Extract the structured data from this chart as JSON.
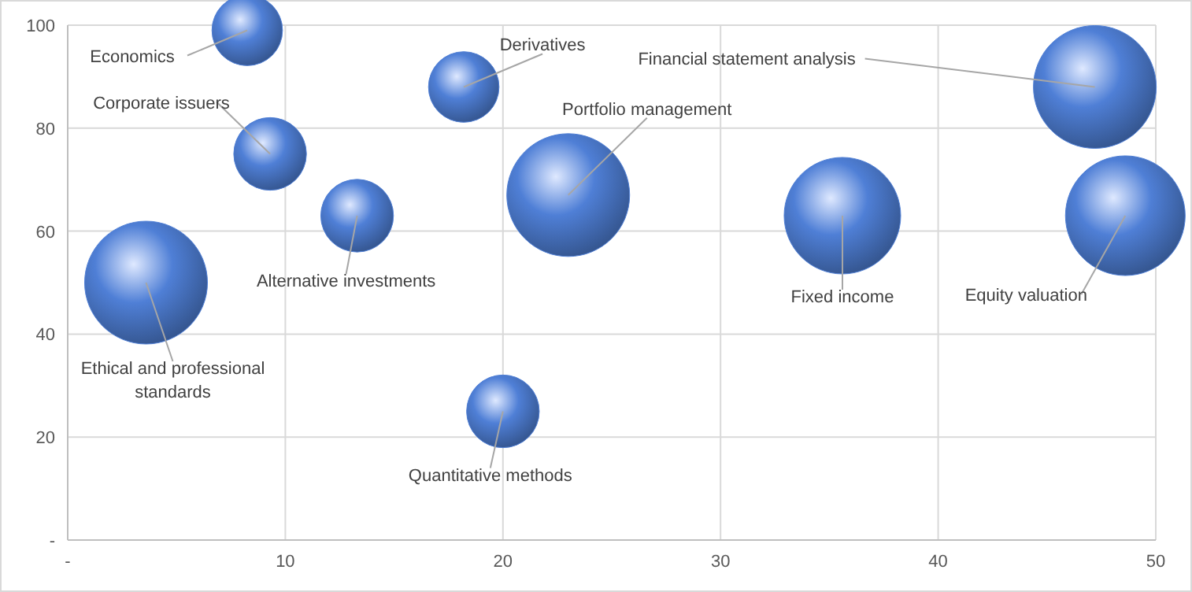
{
  "chart_data": {
    "type": "bubble",
    "color": "#4f7fd6",
    "x": [
      8.25,
      18.2,
      9.3,
      13.3,
      3.6,
      23,
      35.6,
      47.2,
      48.6,
      20
    ],
    "values": [
      99,
      88,
      75,
      63,
      50,
      67,
      63,
      88,
      63,
      25
    ],
    "sizes": [
      0.33,
      0.33,
      0.35,
      0.35,
      1,
      1,
      0.9,
      1,
      0.95,
      0.35
    ],
    "annotations": [
      {
        "text": "Economics",
        "x": 8.25,
        "y": 99
      },
      {
        "text": "Derivatives",
        "x": 18.2,
        "y": 88
      },
      {
        "text": "Corporate issuers",
        "x": 9.3,
        "y": 75
      },
      {
        "text": "Alternative investments",
        "x": 13.3,
        "y": 63
      },
      {
        "text": "Ethical and professional standards",
        "x": 3.6,
        "y": 50
      },
      {
        "text": "Portfolio management",
        "x": 23,
        "y": 67
      },
      {
        "text": "Fixed income",
        "x": 35.6,
        "y": 63
      },
      {
        "text": "Financial statement analysis",
        "x": 47.2,
        "y": 88
      },
      {
        "text": "Equity valuation",
        "x": 48.6,
        "y": 63
      },
      {
        "text": "Quantitative methods",
        "x": 20,
        "y": 25
      }
    ],
    "xlim": [
      0,
      50
    ],
    "xticks": [
      {
        "value": 0,
        "label": "-"
      },
      10,
      20,
      30,
      40,
      50
    ],
    "ylim": [
      0,
      100
    ],
    "yticks": [
      {
        "value": 0,
        "label": "-"
      },
      20,
      40,
      60,
      80,
      100
    ],
    "grid": true
  }
}
